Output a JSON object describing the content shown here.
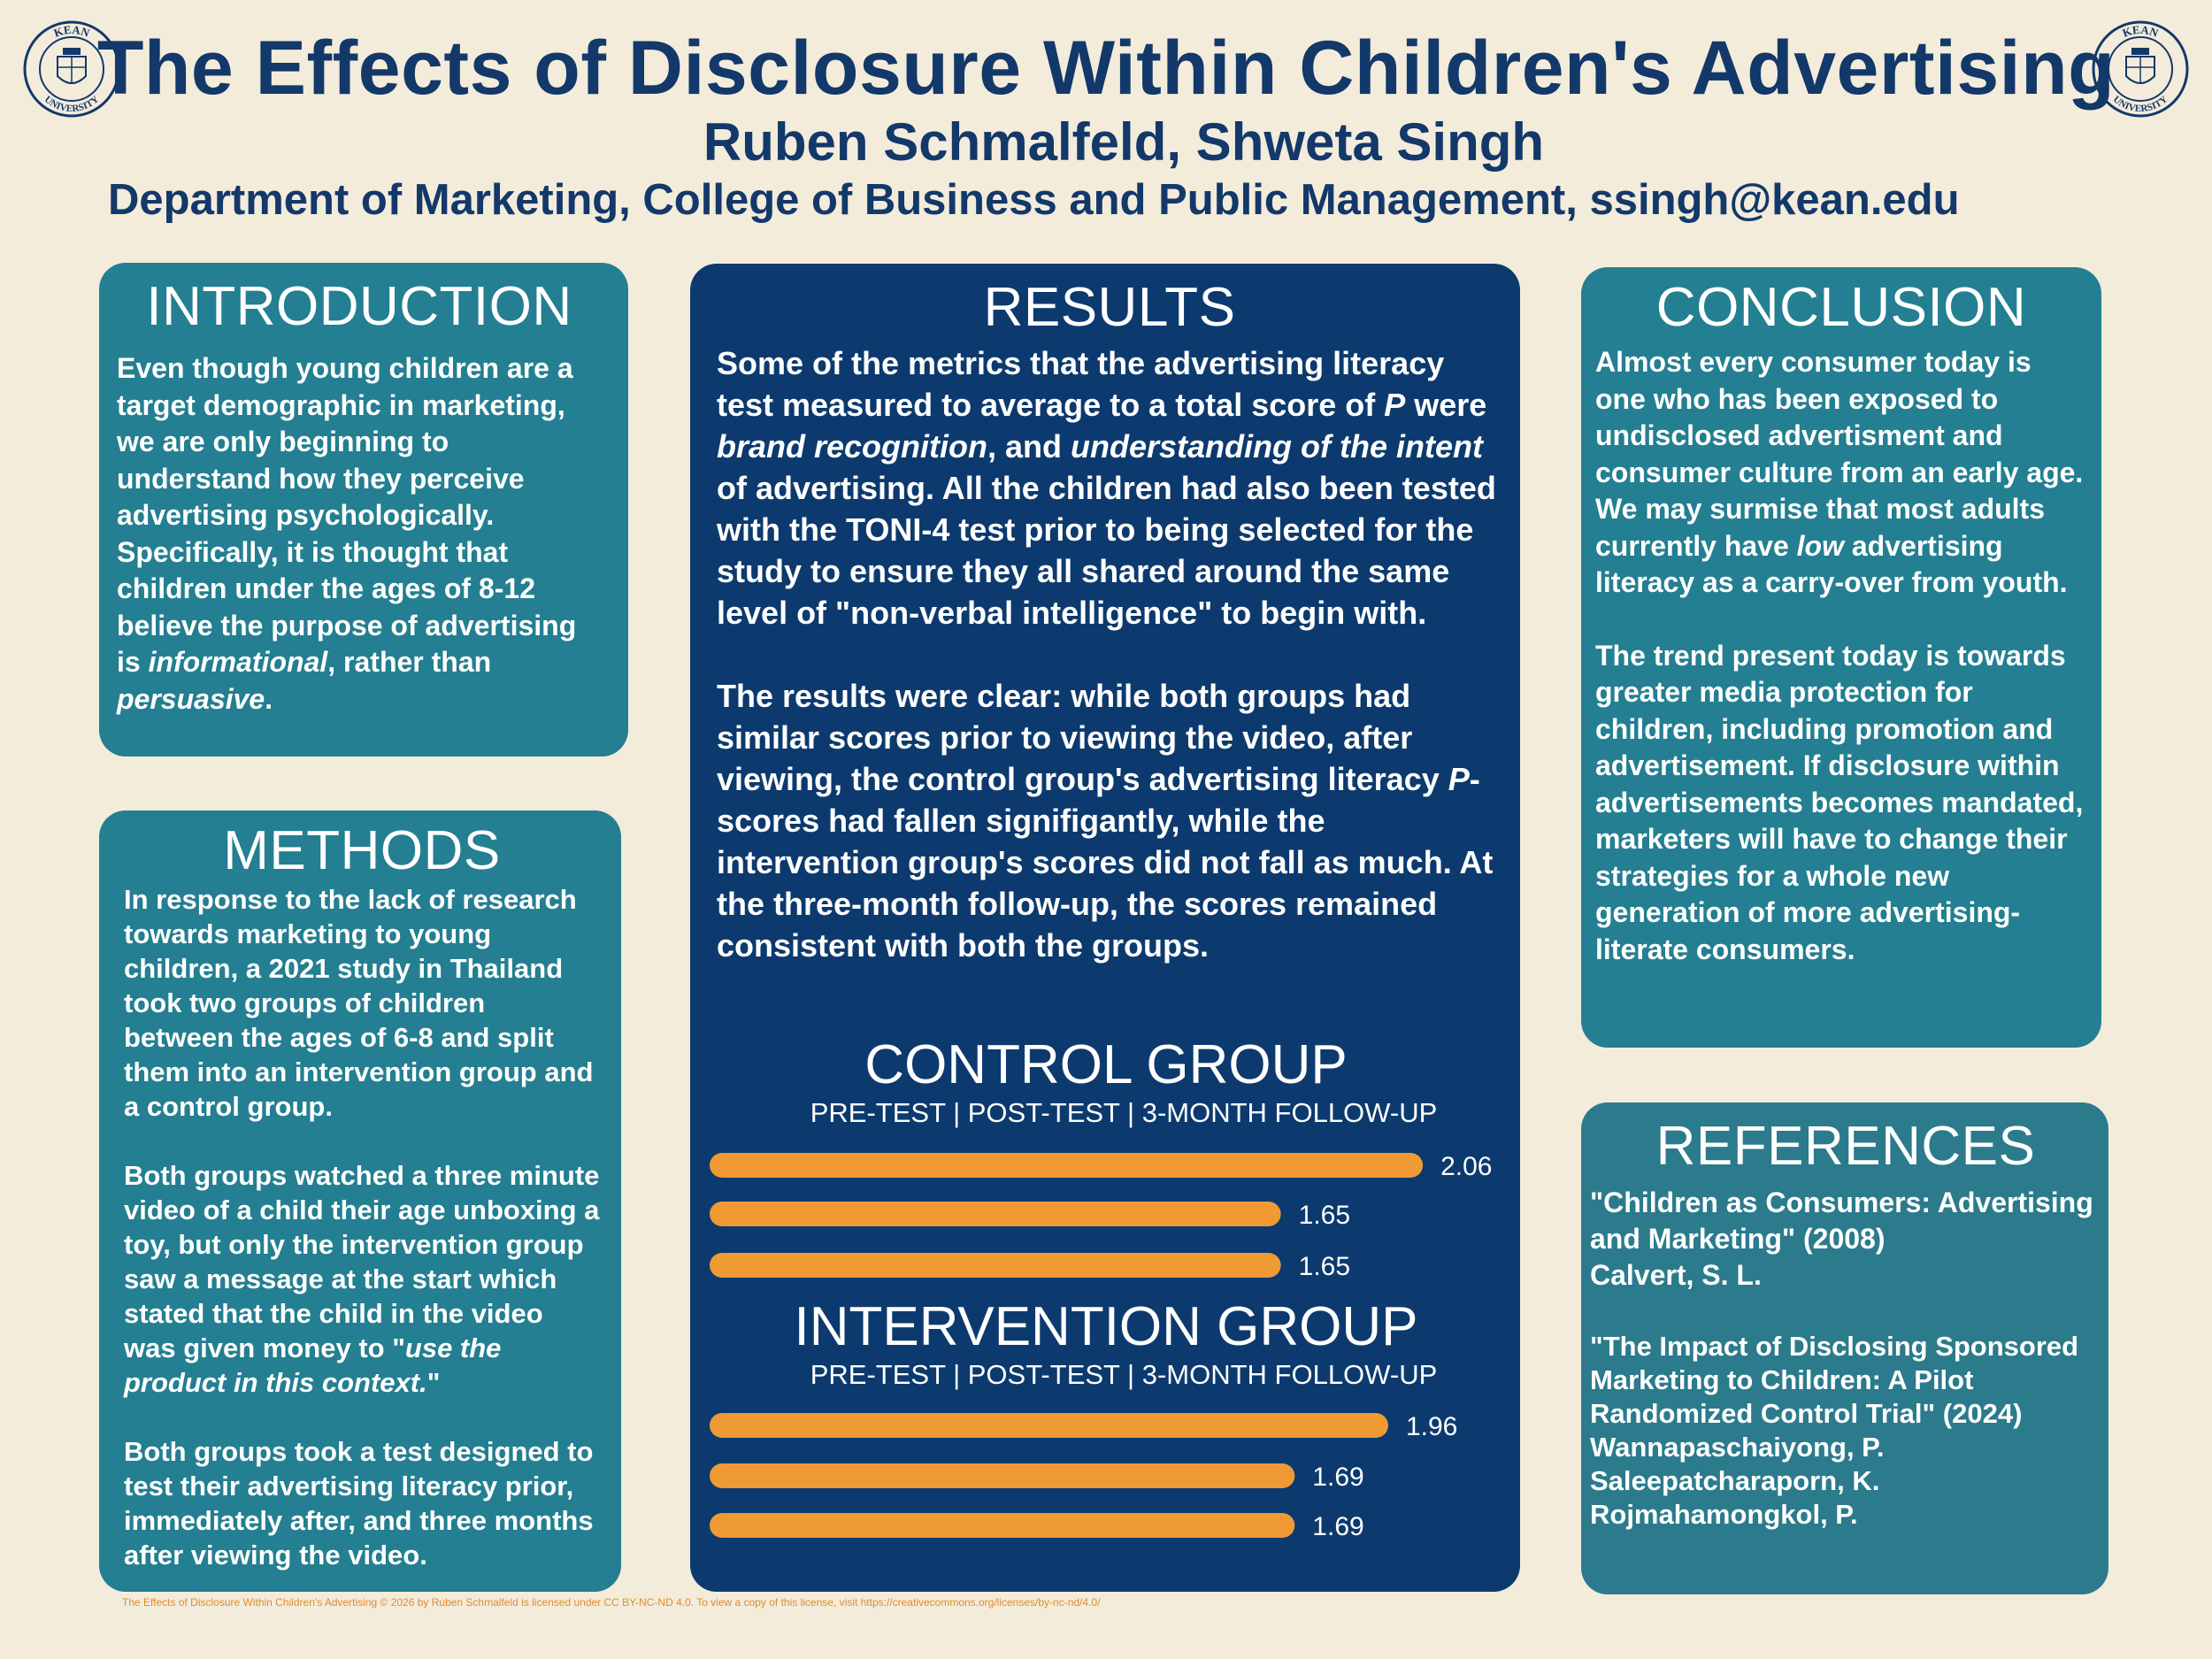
{
  "header": {
    "title": "The Effects of Disclosure Within Children's Advertising",
    "authors": "Ruben Schmalfeld, Shweta Singh",
    "department": "Department of Marketing, College of Business and Public Management, ssingh@kean.edu",
    "seal_top": "KEAN",
    "seal_bottom": "UNIVERSITY"
  },
  "colors": {
    "background": "#f3ecdb",
    "navy": "#13386a",
    "teal": "#237f91",
    "results_blue": "#0c3a6e",
    "bar_orange": "#f09a34"
  },
  "introduction": {
    "heading": "INTRODUCTION",
    "text_1": "Even though young children are a target demographic in marketing, we are only beginning to understand how they perceive advertising psychologically. Specifically, it is thought that children under the ages of 8-12 believe the purpose of advertising is ",
    "em_1": "informational",
    "text_2": ", rather than ",
    "em_2": "persuasive",
    "text_3": "."
  },
  "methods": {
    "heading": "METHODS",
    "para_1": "In response to the lack of research towards marketing to young children, a 2021 study in Thailand took two groups of children between the ages of 6-8 and split them into an intervention group and a control group.",
    "para_2_text": "Both groups watched a three minute video of a child their age unboxing a toy, but only the intervention group saw a message at the start which stated that the child in the video was given money to \"",
    "para_2_em": "use the product in this context.",
    "para_2_end": "\"",
    "para_3": "Both groups took a test designed to test their advertising literacy prior, immediately after, and three months after viewing the video."
  },
  "results": {
    "heading": "RESULTS",
    "p1_a": "Some of the metrics that the advertising literacy test measured to average to a total score of ",
    "p1_p": "P",
    "p1_b": " were ",
    "p1_em1": "brand recognition",
    "p1_c": ", and ",
    "p1_em2": "understanding of the intent",
    "p1_d": " of advertising. All the children had also been tested with the TONI-4 test prior to being selected for the study to ensure they all shared around the same level of \"non-verbal intelligence\" to begin with.",
    "p2_a": "The results were clear: while both groups had similar scores prior to viewing the video, after viewing, the control group's advertising literacy ",
    "p2_p": "P",
    "p2_b": "-scores had fallen signifigantly, while the intervention group's scores did not fall as much. At the three-month follow-up, the scores remained consistent with both the groups."
  },
  "chart_data": [
    {
      "type": "bar",
      "title": "CONTROL GROUP",
      "subtitle": "PRE-TEST | POST-TEST | 3-MONTH FOLLOW-UP",
      "categories": [
        "PRE-TEST",
        "POST-TEST",
        "3-MONTH FOLLOW-UP"
      ],
      "values": [
        2.06,
        1.65,
        1.65
      ],
      "labels": [
        "2.06",
        "1.65",
        "1.65"
      ],
      "xlim": [
        0,
        2.5
      ]
    },
    {
      "type": "bar",
      "title": "INTERVENTION GROUP",
      "subtitle": "PRE-TEST | POST-TEST | 3-MONTH FOLLOW-UP",
      "categories": [
        "PRE-TEST",
        "POST-TEST",
        "3-MONTH FOLLOW-UP"
      ],
      "values": [
        1.96,
        1.69,
        1.69
      ],
      "labels": [
        "1.96",
        "1.69",
        "1.69"
      ],
      "xlim": [
        0,
        2.5
      ]
    }
  ],
  "conclusion": {
    "heading": "CONCLUSION",
    "p1_a": "Almost every consumer today is one who has been exposed to undisclosed advertisment and consumer culture from an early age.",
    "p1_b": "We may surmise that most adults currently have ",
    "p1_em": "low",
    "p1_c": " advertising literacy as a carry-over from youth.",
    "p2": "The trend present today is towards greater media protection for children, including promotion and advertisement. If disclosure within advertisements becomes mandated, marketers will have to change their strategies for a whole new generation of more advertising-literate consumers."
  },
  "references": {
    "heading": "REFERENCES",
    "ref1_title": "\"Children as Consumers: Advertising and Marketing\" (2008)",
    "ref1_author": "Calvert, S. L.",
    "ref2_title": "\"The Impact of Disclosing Sponsored Marketing to Children: A Pilot Randomized Control Trial\" (2024)",
    "ref2_author1": "Wannapaschaiyong, P.",
    "ref2_author2": "Saleepatcharaporn, K.",
    "ref2_author3": "Rojmahamongkol, P."
  },
  "footer": {
    "license": "The Effects of Disclosure Within Children's Advertising © 2026 by Ruben Schmalfeld is licensed under CC BY-NC-ND 4.0. To view a copy of this license, visit https://creativecommons.org/licenses/by-nc-nd/4.0/"
  }
}
